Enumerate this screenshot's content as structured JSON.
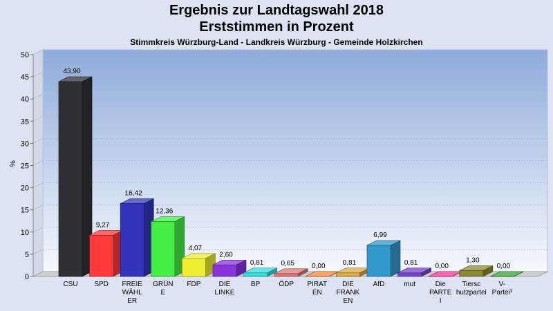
{
  "chart_data": {
    "type": "bar",
    "title": "Ergebnis zur Landtagswahl 2018",
    "subtitle": "Erststimmen in Prozent",
    "caption": "Stimmkreis Würzburg-Land - Landkreis Würzburg - Gemeinde Holzkirchen",
    "ylabel": "%",
    "xlabel": "",
    "ylim": [
      0,
      50
    ],
    "yticks": [
      0,
      5,
      10,
      15,
      20,
      25,
      30,
      35,
      40,
      45,
      50
    ],
    "grid": true,
    "categories": [
      [
        "CSU"
      ],
      [
        "SPD"
      ],
      [
        "FREIE",
        "WÄHL",
        "ER"
      ],
      [
        "GRÜN",
        "E"
      ],
      [
        "FDP"
      ],
      [
        "DIE",
        "LINKE"
      ],
      [
        "BP"
      ],
      [
        "ÖDP"
      ],
      [
        "PIRAT",
        "EN"
      ],
      [
        "DIE",
        "FRANK",
        "EN"
      ],
      [
        "AfD"
      ],
      [
        "mut"
      ],
      [
        "Die",
        "PARTE",
        "I"
      ],
      [
        "Tiersc",
        "hutzpartei"
      ],
      [
        "V-",
        "Partei³"
      ]
    ],
    "values": [
      43.9,
      9.27,
      16.42,
      12.36,
      4.07,
      2.6,
      0.81,
      0.65,
      0.0,
      0.81,
      6.99,
      0.81,
      0.0,
      1.3,
      0.0
    ],
    "value_labels": [
      "43,90",
      "9,27",
      "16,42",
      "12,36",
      "4,07",
      "2,60",
      "0,81",
      "0,65",
      "0,00",
      "0,81",
      "6,99",
      "0,81",
      "0,00",
      "1,30",
      "0,00"
    ],
    "colors": [
      "#2f2f36",
      "#ff3a3a",
      "#3333bb",
      "#44ee44",
      "#eeee33",
      "#8833dd",
      "#33dddd",
      "#dd7777",
      "#ff8833",
      "#ddaa44",
      "#3399cc",
      "#7744cc",
      "#ff3399",
      "#8a8a33",
      "#33aa33"
    ]
  }
}
